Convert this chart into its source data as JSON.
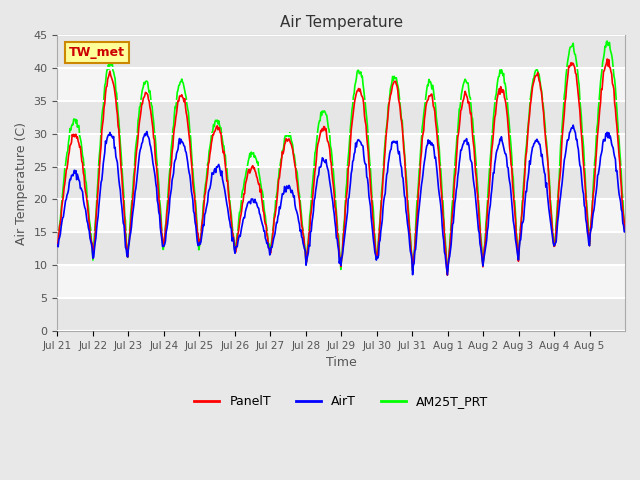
{
  "title": "Air Temperature",
  "ylabel": "Air Temperature (C)",
  "xlabel": "Time",
  "ylim": [
    0,
    45
  ],
  "yticks": [
    0,
    5,
    10,
    15,
    20,
    25,
    30,
    35,
    40,
    45
  ],
  "bg_color": "#e8e8e8",
  "plot_bg_color": "#f5f5f5",
  "grid_color": "white",
  "annotation_text": "TW_met",
  "annotation_bg": "#ffff99",
  "annotation_border": "#cc8800",
  "annotation_text_color": "#cc0000",
  "x_tick_labels": [
    "Jul 21",
    "Jul 22",
    "Jul 23",
    "Jul 24",
    "Jul 25",
    "Jul 26",
    "Jul 27",
    "Jul 28",
    "Jul 29",
    "Jul 30",
    "Jul 31",
    "Aug 1",
    "Aug 2",
    "Aug 3",
    "Aug 4",
    "Aug 5"
  ],
  "legend_labels": [
    "PanelT",
    "AirT",
    "AM25T_PRT"
  ],
  "legend_colors": [
    "red",
    "blue",
    "lime"
  ],
  "line_width": 1.2,
  "daily_mins": [
    13,
    11,
    13,
    13,
    13,
    12,
    12,
    10,
    11,
    11,
    9,
    10,
    11,
    13,
    13,
    15
  ],
  "panel_maxs": [
    30,
    39,
    36,
    36,
    31,
    25,
    29,
    31,
    37,
    38,
    36,
    36,
    37,
    39,
    41,
    41
  ],
  "air_maxs": [
    24,
    30,
    30,
    29,
    25,
    20,
    22,
    26,
    29,
    29,
    29,
    29,
    29,
    29,
    31,
    30
  ],
  "am25t_maxs": [
    32,
    41,
    38,
    38,
    32,
    27,
    30,
    33.5,
    39.5,
    38.5,
    38,
    38,
    39.5,
    39.5,
    43.5,
    44
  ],
  "band_ranges": [
    [
      0,
      5
    ],
    [
      10,
      15
    ],
    [
      20,
      25
    ],
    [
      30,
      35
    ],
    [
      40,
      45
    ]
  ],
  "band_color": "#e0e0e0"
}
